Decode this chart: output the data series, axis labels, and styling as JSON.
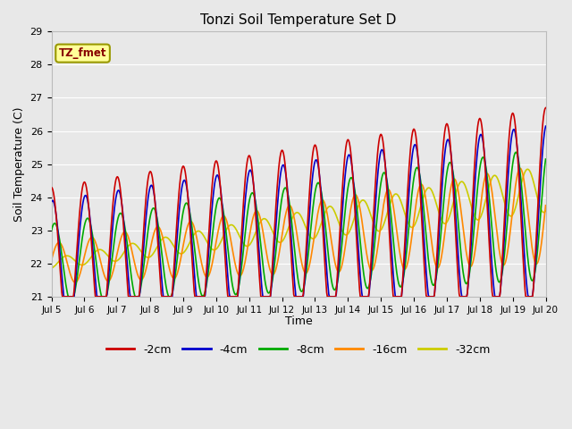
{
  "title": "Tonzi Soil Temperature Set D",
  "xlabel": "Time",
  "ylabel": "Soil Temperature (C)",
  "ylim": [
    21.0,
    29.0
  ],
  "yticks": [
    21.0,
    22.0,
    23.0,
    24.0,
    25.0,
    26.0,
    27.0,
    28.0,
    29.0
  ],
  "plot_bg_color": "#e8e8e8",
  "fig_bg_color": "#e8e8e8",
  "legend_label": "TZ_fmet",
  "legend_box_facecolor": "#ffff99",
  "legend_box_edgecolor": "#999900",
  "series_order": [
    "-2cm",
    "-4cm",
    "-8cm",
    "-16cm",
    "-32cm"
  ],
  "series": {
    "-2cm": {
      "color": "#cc0000",
      "lw": 1.2
    },
    "-4cm": {
      "color": "#0000cc",
      "lw": 1.2
    },
    "-8cm": {
      "color": "#00aa00",
      "lw": 1.2
    },
    "-16cm": {
      "color": "#ff8800",
      "lw": 1.2
    },
    "-32cm": {
      "color": "#cccc00",
      "lw": 1.2
    }
  },
  "xtick_labels": [
    "Jul 5",
    "Jul 6",
    "Jul 7",
    "Jul 8",
    "Jul 9",
    "Jul 10",
    "Jul 11",
    "Jul 12",
    "Jul 13",
    "Jul 14",
    "Jul 15",
    "Jul 16",
    "Jul 17",
    "Jul 18",
    "Jul 19",
    "Jul 20"
  ]
}
